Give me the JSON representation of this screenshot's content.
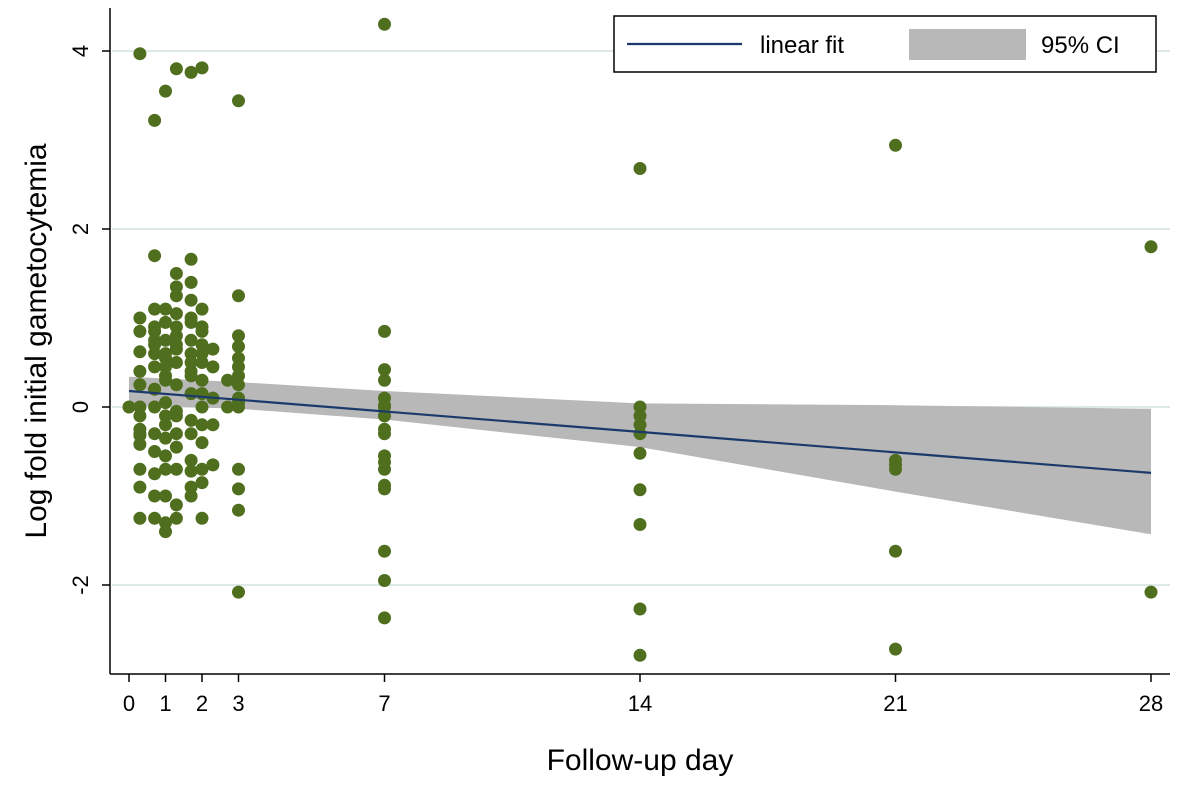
{
  "chart_data": {
    "type": "scatter",
    "title": "",
    "xlabel": "Follow-up day",
    "ylabel": "Log fold initial gametocytemia",
    "xlim": [
      0,
      28
    ],
    "ylim": [
      -3,
      4.5
    ],
    "xticks": [
      0,
      1,
      2,
      3,
      7,
      14,
      21,
      28
    ],
    "yticks": [
      -2,
      0,
      2,
      4
    ],
    "grid": true,
    "legend": {
      "placement": "top-right",
      "entries": [
        {
          "label": "linear fit",
          "kind": "line"
        },
        {
          "label": "95% CI",
          "kind": "area"
        }
      ]
    },
    "colors": {
      "points": "#4f6f1f",
      "fit_line": "#1b3a6b",
      "ci_band": "#b8b8b8",
      "grid": "#dde8e8",
      "axis": "#000000"
    },
    "fit": {
      "x": [
        0,
        28
      ],
      "y": [
        0.18,
        -0.74
      ]
    },
    "ci": {
      "x": [
        0,
        3,
        7,
        14,
        21,
        28
      ],
      "lower": [
        0.02,
        -0.02,
        -0.14,
        -0.45,
        -0.95,
        -1.43
      ],
      "upper": [
        0.34,
        0.28,
        0.18,
        0.04,
        0.02,
        -0.02
      ]
    },
    "series": [
      {
        "x": [
          0,
          0.3,
          0.3,
          0.3,
          0.3,
          0.3,
          0.3,
          0.3,
          0.3,
          0.3,
          0.3,
          0.3,
          0.3,
          0.3,
          0.3,
          0.3,
          0.7,
          0.7,
          0.7,
          0.7,
          0.7,
          0.7,
          0.7,
          0.7,
          0.7,
          0.7,
          0.7,
          0.7,
          0.7,
          0.7,
          0.7,
          0.7,
          0.7,
          1.0,
          1.0,
          1.0,
          1.0,
          1.0,
          1.0,
          1.0,
          1.0,
          1.0,
          1.0,
          1.0,
          1.0,
          1.0,
          1.0,
          1.0,
          1.0,
          1.0,
          1.0,
          1.3,
          1.3,
          1.3,
          1.3,
          1.3,
          1.3,
          1.3,
          1.3,
          1.3,
          1.3,
          1.3,
          1.3,
          1.3,
          1.3,
          1.3,
          1.3,
          1.3,
          1.3,
          1.7,
          1.7,
          1.7,
          1.7,
          1.7,
          1.7,
          1.7,
          1.7,
          1.7,
          1.7,
          1.7,
          1.7,
          1.7,
          1.7,
          1.7,
          1.7,
          1.7,
          1.7,
          2.0,
          2.0,
          2.0,
          2.0,
          2.0,
          2.0,
          2.0,
          2.0,
          2.0,
          2.0,
          2.0,
          2.0,
          2.0,
          2.0,
          2.0,
          2.3,
          2.3,
          2.3,
          2.3,
          2.3,
          2.7,
          2.7,
          3,
          3,
          3,
          3,
          3,
          3,
          3,
          3,
          3,
          3,
          3,
          3,
          3,
          3,
          3,
          7,
          7,
          7,
          7,
          7,
          7,
          7,
          7,
          7,
          7,
          7,
          7,
          7,
          7,
          7,
          7,
          7,
          7,
          14,
          14,
          14,
          14,
          14,
          14,
          14,
          14,
          14,
          14,
          21,
          21,
          21,
          21,
          21,
          21,
          28,
          28
        ],
        "y": [
          0.0,
          3.97,
          1.0,
          0.85,
          0.4,
          0.25,
          0.0,
          -0.1,
          -0.25,
          -0.32,
          -0.42,
          -0.7,
          -0.9,
          -1.25,
          -0.3,
          0.62,
          3.22,
          1.7,
          1.1,
          0.9,
          0.85,
          0.75,
          0.6,
          0.45,
          0.2,
          0.0,
          -0.3,
          -0.5,
          -0.75,
          -1.0,
          -1.25,
          0.7,
          0.2,
          3.55,
          1.1,
          0.95,
          0.75,
          0.55,
          0.45,
          0.3,
          0.05,
          -0.2,
          -0.35,
          -0.55,
          -0.7,
          -1.0,
          -1.3,
          -1.4,
          0.6,
          0.35,
          -0.1,
          3.8,
          1.5,
          1.35,
          1.25,
          1.05,
          0.8,
          0.65,
          0.5,
          0.25,
          -0.1,
          -0.3,
          -0.45,
          -0.7,
          -1.1,
          -1.25,
          0.9,
          0.7,
          -0.05,
          3.76,
          1.66,
          1.4,
          1.2,
          0.95,
          0.75,
          0.6,
          0.4,
          0.15,
          -0.15,
          -0.3,
          -0.6,
          -0.72,
          -0.9,
          -1.0,
          1.0,
          0.5,
          0.35,
          3.81,
          1.1,
          0.9,
          0.7,
          0.5,
          0.3,
          0.15,
          -0.2,
          -0.4,
          -0.7,
          -0.85,
          -1.25,
          0.85,
          0.6,
          0.0,
          0.65,
          0.45,
          -0.2,
          -0.65,
          0.1,
          0.3,
          0.0,
          3.44,
          1.25,
          0.8,
          0.68,
          0.55,
          0.45,
          0.35,
          0.25,
          0.05,
          0.0,
          -0.7,
          -0.92,
          -1.16,
          -2.08,
          0.1,
          0.85,
          0.42,
          0.3,
          0.1,
          0.0,
          -0.1,
          -0.25,
          -0.3,
          -0.55,
          -0.62,
          -0.7,
          -0.88,
          -0.92,
          -1.62,
          -1.95,
          -2.37,
          4.3,
          0.02,
          2.68,
          0.0,
          -0.1,
          -0.2,
          -0.3,
          -0.52,
          -0.93,
          -1.32,
          -2.27,
          -2.79,
          2.94,
          -0.6,
          -0.7,
          -1.62,
          -2.72,
          -0.65,
          1.8,
          -2.08
        ]
      }
    ]
  }
}
